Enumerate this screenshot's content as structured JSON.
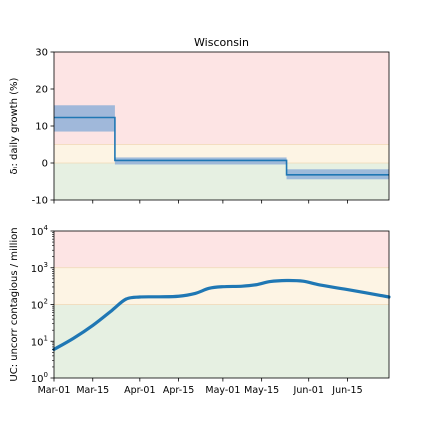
{
  "chart_data": [
    {
      "type": "line",
      "title": "Wisconsin",
      "xlabel": "",
      "ylabel": "δᵢ: daily growth (%)",
      "x_range": [
        "2020-03-01",
        "2020-06-30"
      ],
      "ylim": [
        -10,
        30
      ],
      "yticks": [
        -10,
        0,
        10,
        20,
        30
      ],
      "zones": [
        {
          "from": -10,
          "to": 0,
          "color": "#e6f0e2"
        },
        {
          "from": 0,
          "to": 5,
          "color": "#fdf4e4"
        },
        {
          "from": 5,
          "to": 30,
          "color": "#fde4e4"
        }
      ],
      "series": [
        {
          "kind": "step",
          "color": "#1f77b4",
          "band_color": "#8fb0d8",
          "segments": [
            {
              "x_start": "2020-03-01",
              "x_end": "2020-03-23",
              "value": 12.3,
              "lower": 8.5,
              "upper": 15.6
            },
            {
              "x_start": "2020-03-23",
              "x_end": "2020-05-24",
              "value": 0.7,
              "lower": -0.4,
              "upper": 1.5
            },
            {
              "x_start": "2020-05-24",
              "x_end": "2020-06-30",
              "value": -3.2,
              "lower": -4.4,
              "upper": -1.7
            }
          ]
        }
      ]
    },
    {
      "type": "line",
      "title": "",
      "xlabel": "",
      "ylabel": "UC: uncorr contagious / million",
      "y_scale": "log",
      "ylim": [
        1,
        10000
      ],
      "yticks": [
        {
          "value": 1,
          "mantissa": "10",
          "exp": "0"
        },
        {
          "value": 10,
          "mantissa": "10",
          "exp": "1"
        },
        {
          "value": 100,
          "mantissa": "10",
          "exp": "2"
        },
        {
          "value": 1000,
          "mantissa": "10",
          "exp": "3"
        },
        {
          "value": 10000,
          "mantissa": "10",
          "exp": "4"
        }
      ],
      "x_ticks": [
        {
          "date": "2020-03-01",
          "label": "Mar-01"
        },
        {
          "date": "2020-03-15",
          "label": "Mar-15"
        },
        {
          "date": "2020-04-01",
          "label": "Apr-01"
        },
        {
          "date": "2020-04-15",
          "label": "Apr-15"
        },
        {
          "date": "2020-05-01",
          "label": "May-01"
        },
        {
          "date": "2020-05-15",
          "label": "May-15"
        },
        {
          "date": "2020-06-01",
          "label": "Jun-01"
        },
        {
          "date": "2020-06-15",
          "label": "Jun-15"
        }
      ],
      "zones": [
        {
          "from": 1,
          "to": 100,
          "color": "#e6f0e2"
        },
        {
          "from": 100,
          "to": 1000,
          "color": "#fdf4e4"
        },
        {
          "from": 1000,
          "to": 10000,
          "color": "#fde4e4"
        }
      ],
      "series": [
        {
          "color": "#1f77b4",
          "points": [
            {
              "x": "2020-03-01",
              "y": 6
            },
            {
              "x": "2020-03-08",
              "y": 12
            },
            {
              "x": "2020-03-15",
              "y": 27
            },
            {
              "x": "2020-03-22",
              "y": 70
            },
            {
              "x": "2020-03-27",
              "y": 140
            },
            {
              "x": "2020-04-01",
              "y": 160
            },
            {
              "x": "2020-04-08",
              "y": 162
            },
            {
              "x": "2020-04-15",
              "y": 168
            },
            {
              "x": "2020-04-21",
              "y": 200
            },
            {
              "x": "2020-04-26",
              "y": 275
            },
            {
              "x": "2020-05-01",
              "y": 305
            },
            {
              "x": "2020-05-08",
              "y": 315
            },
            {
              "x": "2020-05-13",
              "y": 345
            },
            {
              "x": "2020-05-18",
              "y": 420
            },
            {
              "x": "2020-05-24",
              "y": 450
            },
            {
              "x": "2020-05-30",
              "y": 430
            },
            {
              "x": "2020-06-05",
              "y": 340
            },
            {
              "x": "2020-06-15",
              "y": 255
            },
            {
              "x": "2020-06-30",
              "y": 160
            }
          ]
        }
      ]
    }
  ]
}
